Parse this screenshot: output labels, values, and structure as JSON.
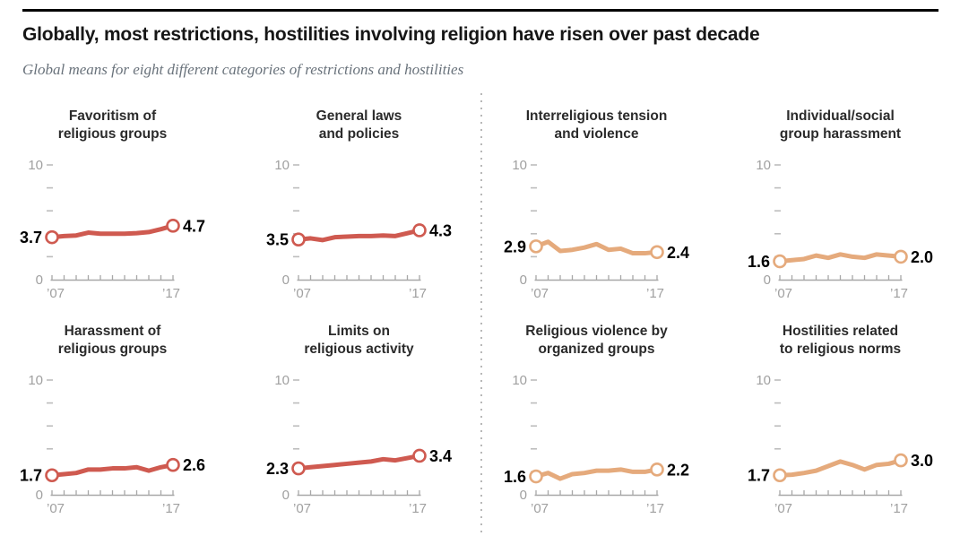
{
  "header": {
    "title": "Globally, most restrictions, hostilities involving religion have risen over past decade",
    "subtitle": "Global means for eight different categories of restrictions and hostilities"
  },
  "colors": {
    "restrictions_red": "#cf5a50",
    "hostilities_tan": "#e5aa7c",
    "axis_gray": "#a8a8a8",
    "axis_label_gray": "#a0a0a0",
    "value_label_black": "#000000",
    "panel_title_dark": "#2b2b2b"
  },
  "chart_data": [
    {
      "type": "line",
      "title_line1": "Favoritism of",
      "title_line2": "religious groups",
      "x_years": [
        2007,
        2008,
        2009,
        2010,
        2011,
        2012,
        2013,
        2014,
        2015,
        2016,
        2017
      ],
      "values": [
        3.7,
        3.8,
        3.85,
        4.1,
        4.0,
        4.0,
        4.0,
        4.05,
        4.15,
        4.4,
        4.7
      ],
      "start_label": "3.7",
      "end_label": "4.7",
      "color": "restrictions_red",
      "ylim": [
        0,
        10
      ],
      "yticks": [
        0,
        2,
        4,
        6,
        8,
        10
      ],
      "ymax_label": "10",
      "ymin_label": "0",
      "x_start_label": "’07",
      "x_end_label": "’17"
    },
    {
      "type": "line",
      "title_line1": "General laws",
      "title_line2": "and policies",
      "x_years": [
        2007,
        2008,
        2009,
        2010,
        2011,
        2012,
        2013,
        2014,
        2015,
        2016,
        2017
      ],
      "values": [
        3.5,
        3.6,
        3.45,
        3.7,
        3.75,
        3.8,
        3.8,
        3.85,
        3.8,
        4.05,
        4.3
      ],
      "start_label": "3.5",
      "end_label": "4.3",
      "color": "restrictions_red",
      "ylim": [
        0,
        10
      ],
      "yticks": [
        0,
        2,
        4,
        6,
        8,
        10
      ],
      "ymax_label": "10",
      "ymin_label": "0",
      "x_start_label": "’07",
      "x_end_label": "’17"
    },
    {
      "type": "line",
      "title_line1": "Interreligious tension",
      "title_line2": "and violence",
      "x_years": [
        2007,
        2008,
        2009,
        2010,
        2011,
        2012,
        2013,
        2014,
        2015,
        2016,
        2017
      ],
      "values": [
        2.9,
        3.3,
        2.5,
        2.6,
        2.8,
        3.1,
        2.6,
        2.7,
        2.3,
        2.3,
        2.4
      ],
      "start_label": "2.9",
      "end_label": "2.4",
      "color": "hostilities_tan",
      "ylim": [
        0,
        10
      ],
      "yticks": [
        0,
        2,
        4,
        6,
        8,
        10
      ],
      "ymax_label": "10",
      "ymin_label": "0",
      "x_start_label": "’07",
      "x_end_label": "’17"
    },
    {
      "type": "line",
      "title_line1": "Individual/social",
      "title_line2": "group harassment",
      "x_years": [
        2007,
        2008,
        2009,
        2010,
        2011,
        2012,
        2013,
        2014,
        2015,
        2016,
        2017
      ],
      "values": [
        1.6,
        1.7,
        1.8,
        2.1,
        1.9,
        2.2,
        2.0,
        1.9,
        2.2,
        2.1,
        2.0
      ],
      "start_label": "1.6",
      "end_label": "2.0",
      "color": "hostilities_tan",
      "ylim": [
        0,
        10
      ],
      "yticks": [
        0,
        2,
        4,
        6,
        8,
        10
      ],
      "ymax_label": "10",
      "ymin_label": "0",
      "x_start_label": "’07",
      "x_end_label": "’17"
    },
    {
      "type": "line",
      "title_line1": "Harassment of",
      "title_line2": "religious groups",
      "x_years": [
        2007,
        2008,
        2009,
        2010,
        2011,
        2012,
        2013,
        2014,
        2015,
        2016,
        2017
      ],
      "values": [
        1.7,
        1.8,
        1.9,
        2.2,
        2.2,
        2.3,
        2.3,
        2.4,
        2.1,
        2.4,
        2.6
      ],
      "start_label": "1.7",
      "end_label": "2.6",
      "color": "restrictions_red",
      "ylim": [
        0,
        10
      ],
      "yticks": [
        0,
        2,
        4,
        6,
        8,
        10
      ],
      "ymax_label": "10",
      "ymin_label": "0",
      "x_start_label": "’07",
      "x_end_label": "’17"
    },
    {
      "type": "line",
      "title_line1": "Limits on",
      "title_line2": "religious activity",
      "x_years": [
        2007,
        2008,
        2009,
        2010,
        2011,
        2012,
        2013,
        2014,
        2015,
        2016,
        2017
      ],
      "values": [
        2.3,
        2.4,
        2.5,
        2.6,
        2.7,
        2.8,
        2.9,
        3.1,
        3.0,
        3.2,
        3.4
      ],
      "start_label": "2.3",
      "end_label": "3.4",
      "color": "restrictions_red",
      "ylim": [
        0,
        10
      ],
      "yticks": [
        0,
        2,
        4,
        6,
        8,
        10
      ],
      "ymax_label": "10",
      "ymin_label": "0",
      "x_start_label": "’07",
      "x_end_label": "’17"
    },
    {
      "type": "line",
      "title_line1": "Religious violence by",
      "title_line2": "organized groups",
      "x_years": [
        2007,
        2008,
        2009,
        2010,
        2011,
        2012,
        2013,
        2014,
        2015,
        2016,
        2017
      ],
      "values": [
        1.6,
        1.9,
        1.4,
        1.8,
        1.9,
        2.1,
        2.1,
        2.2,
        2.0,
        2.0,
        2.2
      ],
      "start_label": "1.6",
      "end_label": "2.2",
      "color": "hostilities_tan",
      "ylim": [
        0,
        10
      ],
      "yticks": [
        0,
        2,
        4,
        6,
        8,
        10
      ],
      "ymax_label": "10",
      "ymin_label": "0",
      "x_start_label": "’07",
      "x_end_label": "’17"
    },
    {
      "type": "line",
      "title_line1": "Hostilities related",
      "title_line2": "to religious norms",
      "x_years": [
        2007,
        2008,
        2009,
        2010,
        2011,
        2012,
        2013,
        2014,
        2015,
        2016,
        2017
      ],
      "values": [
        1.7,
        1.75,
        1.9,
        2.1,
        2.5,
        2.9,
        2.6,
        2.2,
        2.6,
        2.7,
        3.0
      ],
      "start_label": "1.7",
      "end_label": "3.0",
      "color": "hostilities_tan",
      "ylim": [
        0,
        10
      ],
      "yticks": [
        0,
        2,
        4,
        6,
        8,
        10
      ],
      "ymax_label": "10",
      "ymin_label": "",
      "x_start_label": "’07",
      "x_end_label": "’17"
    }
  ]
}
